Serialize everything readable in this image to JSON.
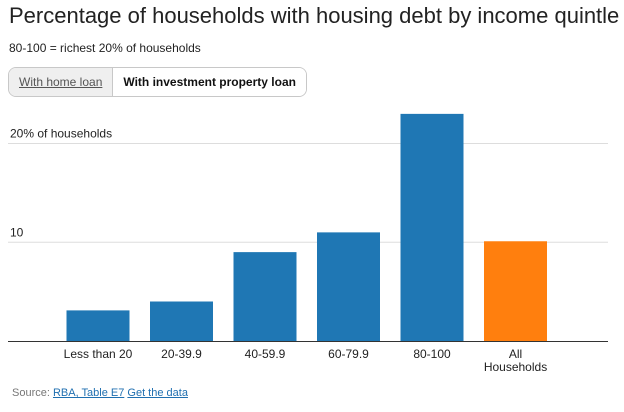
{
  "header": {
    "title": "Percentage of households with housing debt by income quintle",
    "subtitle": "80-100 = richest 20% of households"
  },
  "tabs": [
    {
      "label": "With home loan",
      "active": false
    },
    {
      "label": "With investment property loan",
      "active": true
    }
  ],
  "footer": {
    "source_prefix": "Source:",
    "source_link": "RBA, Table E7",
    "data_link": "Get the data"
  },
  "colors": {
    "bar": "#1f77b4",
    "highlight_bar": "#ff7f0e",
    "gridline": "#dddddd",
    "axis": "#333333"
  },
  "chart_data": {
    "type": "bar",
    "categories": [
      "Less than 20",
      "20-39.9",
      "40-59.9",
      "60-79.9",
      "80-100",
      "All Households"
    ],
    "values": [
      3.1,
      4.0,
      9.0,
      11.0,
      23.0,
      10.1
    ],
    "highlight_index": 5,
    "ylim": [
      0,
      24
    ],
    "yticks": [
      {
        "value": 10,
        "label": "10"
      },
      {
        "value": 20,
        "label": "20% of households"
      }
    ],
    "grid": true,
    "legend": "none"
  }
}
